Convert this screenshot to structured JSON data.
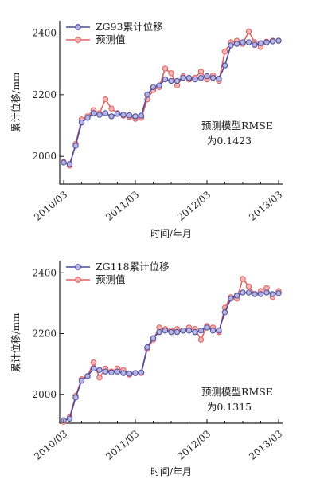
{
  "chart_data": [
    {
      "type": "line",
      "ylabel": "累计位移/mm",
      "xlabel": "时间/年月",
      "x_ticks": [
        "2010/03",
        "2011/03",
        "2012/03",
        "2013/03"
      ],
      "y_ticks": [
        2000,
        2200,
        2400
      ],
      "ylim": [
        1910,
        2440
      ],
      "grid": false,
      "legend_position": "top-left",
      "annotation": [
        "预测模型RMSE",
        "为0.1423"
      ],
      "series": [
        {
          "name": "ZG93累计位移",
          "color": "#4a4aa0",
          "values": [
            1980,
            1975,
            2035,
            2110,
            2125,
            2140,
            2135,
            2140,
            2130,
            2138,
            2135,
            2133,
            2130,
            2132,
            2200,
            2225,
            2230,
            2250,
            2245,
            2245,
            2255,
            2255,
            2250,
            2255,
            2260,
            2255,
            2252,
            2295,
            2360,
            2365,
            2370,
            2370,
            2362,
            2367,
            2370,
            2373,
            2375
          ]
        },
        {
          "name": "预测值",
          "color": "#e06060",
          "values": [
            1982,
            1970,
            2040,
            2120,
            2130,
            2150,
            2140,
            2185,
            2155,
            2140,
            2132,
            2128,
            2122,
            2125,
            2185,
            2215,
            2225,
            2285,
            2270,
            2230,
            2260,
            2250,
            2255,
            2275,
            2250,
            2262,
            2245,
            2340,
            2370,
            2375,
            2365,
            2405,
            2370,
            2355,
            2372,
            2375,
            2375
          ]
        }
      ]
    },
    {
      "type": "line",
      "ylabel": "累计位移/mm",
      "xlabel": "时间/年月",
      "x_ticks": [
        "2010/03",
        "2011/03",
        "2012/03",
        "2013/03"
      ],
      "y_ticks": [
        2000,
        2200,
        2400
      ],
      "ylim": [
        1905,
        2440
      ],
      "grid": false,
      "legend_position": "top-left",
      "annotation": [
        "预测模型RMSE",
        "为0.1315"
      ],
      "series": [
        {
          "name": "ZG118累计位移",
          "color": "#4a4aa0",
          "values": [
            1915,
            1920,
            1990,
            2045,
            2060,
            2085,
            2080,
            2075,
            2072,
            2075,
            2070,
            2068,
            2070,
            2072,
            2155,
            2185,
            2205,
            2210,
            2205,
            2205,
            2210,
            2210,
            2205,
            2210,
            2220,
            2210,
            2210,
            2270,
            2315,
            2325,
            2335,
            2335,
            2330,
            2330,
            2335,
            2330,
            2333
          ]
        },
        {
          "name": "预测值",
          "color": "#e06060",
          "values": [
            1910,
            1925,
            1995,
            2050,
            2060,
            2105,
            2055,
            2085,
            2075,
            2085,
            2080,
            2065,
            2070,
            2070,
            2150,
            2180,
            2220,
            2215,
            2210,
            2215,
            2210,
            2220,
            2215,
            2180,
            2225,
            2220,
            2205,
            2285,
            2320,
            2315,
            2380,
            2355,
            2330,
            2340,
            2350,
            2320,
            2340
          ]
        }
      ]
    }
  ]
}
